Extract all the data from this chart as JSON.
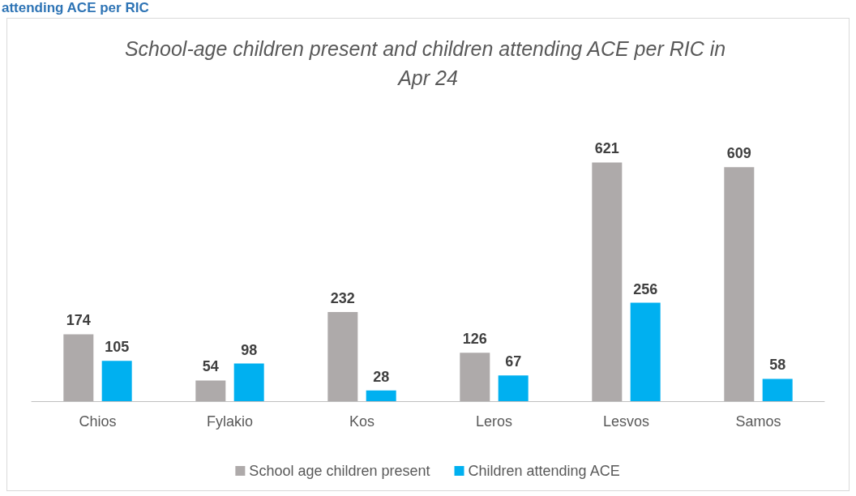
{
  "chart_data": {
    "type": "bar",
    "title": "School-age children present and children attending ACE per RIC in Apr 24",
    "annotations": [
      "attending ACE per RIC"
    ],
    "categories": [
      "Chios",
      "Fylakio",
      "Kos",
      "Leros",
      "Lesvos",
      "Samos"
    ],
    "series": [
      {
        "name": "School age children present",
        "color": "#aeaaaa",
        "values": [
          174,
          54,
          232,
          126,
          621,
          609
        ]
      },
      {
        "name": "Children attending ACE",
        "color": "#00b0f0",
        "values": [
          105,
          98,
          28,
          67,
          256,
          58
        ]
      }
    ],
    "data_labels": true,
    "legend": "bottom"
  }
}
